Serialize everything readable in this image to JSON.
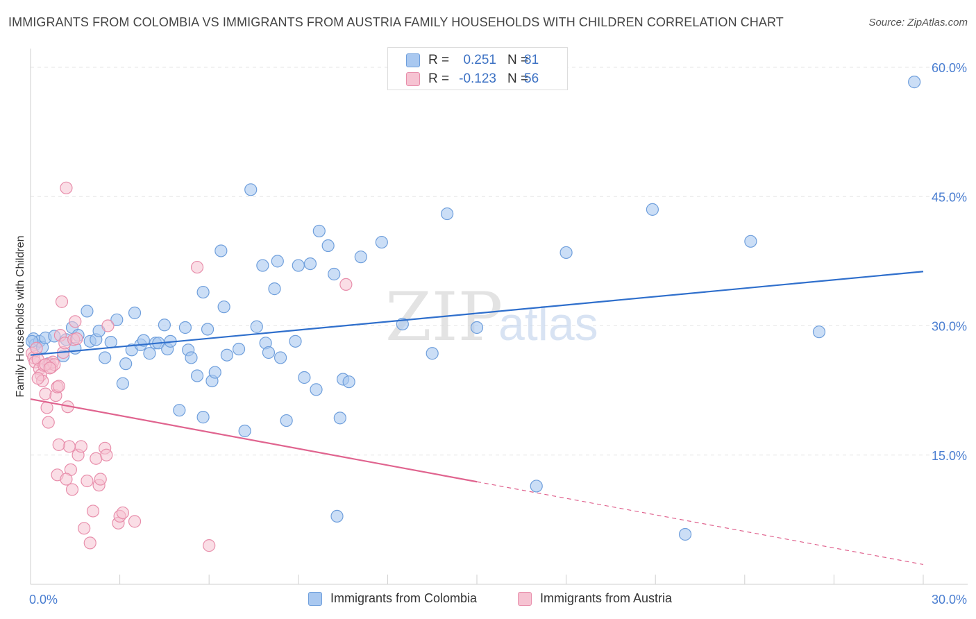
{
  "header": {
    "title": "IMMIGRANTS FROM COLOMBIA VS IMMIGRANTS FROM AUSTRIA FAMILY HOUSEHOLDS WITH CHILDREN CORRELATION CHART",
    "source": "Source: ZipAtlas.com"
  },
  "watermark": {
    "zip": "ZIP",
    "atlas": "atlas"
  },
  "colors": {
    "colombia_fill": "#a9c8f0",
    "colombia_stroke": "#6f9fdc",
    "colombia_line": "#2f6fcc",
    "austria_fill": "#f6c3d2",
    "austria_stroke": "#e88eab",
    "austria_line": "#e0648f",
    "grid": "#e6e6e6",
    "axis_text": "#4a7ed1"
  },
  "legend": {
    "rows": [
      {
        "r_label": "R =",
        "r_value": "0.251",
        "n_label": "N =",
        "n_value": "81"
      },
      {
        "r_label": "R =",
        "r_value": "-0.123",
        "n_label": "N =",
        "n_value": "56"
      }
    ]
  },
  "bottom_legend": {
    "colombia": "Immigrants from Colombia",
    "austria": "Immigrants from Austria"
  },
  "chart_data": {
    "type": "scatter",
    "title": "IMMIGRANTS FROM COLOMBIA VS IMMIGRANTS FROM AUSTRIA FAMILY HOUSEHOLDS WITH CHILDREN CORRELATION CHART",
    "xlabel": "",
    "ylabel": "Family Households with Children",
    "xlim": [
      0,
      30
    ],
    "ylim": [
      0,
      60
    ],
    "x_tick_labels": [
      "0.0%",
      "30.0%"
    ],
    "y_tick_labels": [
      "15.0%",
      "30.0%",
      "45.0%",
      "60.0%"
    ],
    "y_ticks": [
      15,
      30,
      45,
      60
    ],
    "grid": true,
    "series": [
      {
        "name": "Immigrants from Colombia",
        "points": [
          [
            0.1,
            28.5
          ],
          [
            0.15,
            27.8
          ],
          [
            0.3,
            28.2
          ],
          [
            0.4,
            27.5
          ],
          [
            0.5,
            28.6
          ],
          [
            0.6,
            25.6
          ],
          [
            0.8,
            28.8
          ],
          [
            1.1,
            26.5
          ],
          [
            1.2,
            28.4
          ],
          [
            1.4,
            29.8
          ],
          [
            1.5,
            27.4
          ],
          [
            1.6,
            28.9
          ],
          [
            1.9,
            31.7
          ],
          [
            2.0,
            28.2
          ],
          [
            2.2,
            28.4
          ],
          [
            2.3,
            29.4
          ],
          [
            2.5,
            26.3
          ],
          [
            2.7,
            28.1
          ],
          [
            2.9,
            30.7
          ],
          [
            3.1,
            23.3
          ],
          [
            3.2,
            25.6
          ],
          [
            3.4,
            27.2
          ],
          [
            3.5,
            31.5
          ],
          [
            3.7,
            27.8
          ],
          [
            3.8,
            28.3
          ],
          [
            4.0,
            26.8
          ],
          [
            4.2,
            28.0
          ],
          [
            4.3,
            28.0
          ],
          [
            4.5,
            30.1
          ],
          [
            4.6,
            27.3
          ],
          [
            4.7,
            28.2
          ],
          [
            5.0,
            20.2
          ],
          [
            5.2,
            29.8
          ],
          [
            5.3,
            27.2
          ],
          [
            5.4,
            26.3
          ],
          [
            5.6,
            24.2
          ],
          [
            5.8,
            19.4
          ],
          [
            5.8,
            33.9
          ],
          [
            5.95,
            29.6
          ],
          [
            6.1,
            23.6
          ],
          [
            6.2,
            24.6
          ],
          [
            6.4,
            38.7
          ],
          [
            6.5,
            32.2
          ],
          [
            6.6,
            26.6
          ],
          [
            7.0,
            27.3
          ],
          [
            7.2,
            17.8
          ],
          [
            7.4,
            45.8
          ],
          [
            7.6,
            29.9
          ],
          [
            7.8,
            37.0
          ],
          [
            7.9,
            28.0
          ],
          [
            8.0,
            26.9
          ],
          [
            8.2,
            34.3
          ],
          [
            8.3,
            37.5
          ],
          [
            8.4,
            26.3
          ],
          [
            8.6,
            19.0
          ],
          [
            8.9,
            28.2
          ],
          [
            9.0,
            37.0
          ],
          [
            9.2,
            24.0
          ],
          [
            9.4,
            37.2
          ],
          [
            9.6,
            22.6
          ],
          [
            9.7,
            41.0
          ],
          [
            10.0,
            39.3
          ],
          [
            10.2,
            36.0
          ],
          [
            10.3,
            7.9
          ],
          [
            10.4,
            19.3
          ],
          [
            10.5,
            23.8
          ],
          [
            10.7,
            23.5
          ],
          [
            11.1,
            38.0
          ],
          [
            11.8,
            39.7
          ],
          [
            12.5,
            30.2
          ],
          [
            13.5,
            26.8
          ],
          [
            14.0,
            43.0
          ],
          [
            15.0,
            29.8
          ],
          [
            17.0,
            11.4
          ],
          [
            18.0,
            38.5
          ],
          [
            20.9,
            43.5
          ],
          [
            22.0,
            5.8
          ],
          [
            24.2,
            39.8
          ],
          [
            26.5,
            29.3
          ],
          [
            29.7,
            58.3
          ],
          [
            0.05,
            28.2
          ]
        ]
      },
      {
        "name": "Immigrants from Austria",
        "points": [
          [
            0.05,
            26.8
          ],
          [
            0.1,
            26.3
          ],
          [
            0.15,
            25.8
          ],
          [
            0.2,
            27.4
          ],
          [
            0.25,
            26.1
          ],
          [
            0.3,
            25.0
          ],
          [
            0.35,
            24.3
          ],
          [
            0.4,
            23.6
          ],
          [
            0.45,
            25.4
          ],
          [
            0.5,
            22.1
          ],
          [
            0.55,
            20.5
          ],
          [
            0.6,
            18.8
          ],
          [
            0.65,
            25.6
          ],
          [
            0.7,
            25.2
          ],
          [
            0.75,
            25.8
          ],
          [
            0.8,
            25.5
          ],
          [
            0.85,
            21.9
          ],
          [
            0.9,
            22.9
          ],
          [
            0.95,
            23.0
          ],
          [
            1.0,
            28.9
          ],
          [
            1.05,
            32.8
          ],
          [
            1.1,
            26.9
          ],
          [
            1.15,
            28.0
          ],
          [
            1.2,
            46.0
          ],
          [
            1.25,
            20.6
          ],
          [
            1.3,
            16.0
          ],
          [
            1.35,
            13.3
          ],
          [
            1.4,
            11.0
          ],
          [
            1.45,
            28.4
          ],
          [
            1.5,
            30.5
          ],
          [
            1.55,
            28.5
          ],
          [
            1.6,
            15.0
          ],
          [
            1.7,
            16.0
          ],
          [
            1.8,
            6.5
          ],
          [
            1.9,
            12.0
          ],
          [
            2.0,
            4.8
          ],
          [
            2.1,
            8.5
          ],
          [
            2.2,
            14.6
          ],
          [
            2.3,
            11.5
          ],
          [
            2.35,
            12.2
          ],
          [
            2.5,
            15.8
          ],
          [
            2.55,
            15.0
          ],
          [
            2.6,
            30.0
          ],
          [
            2.95,
            7.1
          ],
          [
            3.0,
            7.9
          ],
          [
            3.1,
            8.3
          ],
          [
            3.5,
            7.3
          ],
          [
            5.6,
            36.8
          ],
          [
            6.0,
            4.5
          ],
          [
            10.6,
            34.8
          ],
          [
            0.9,
            12.7
          ],
          [
            1.2,
            12.2
          ],
          [
            0.95,
            16.2
          ],
          [
            0.5,
            25.5
          ],
          [
            0.65,
            25.1
          ],
          [
            0.25,
            23.9
          ]
        ]
      }
    ],
    "trend_lines": [
      {
        "series": "Immigrants from Colombia",
        "x": [
          0,
          30
        ],
        "y": [
          26.6,
          36.3
        ],
        "style": "solid"
      },
      {
        "series": "Immigrants from Austria",
        "x": [
          0,
          15
        ],
        "y": [
          21.5,
          11.9
        ],
        "style": "solid"
      },
      {
        "series": "Immigrants from Austria",
        "x": [
          15,
          30
        ],
        "y": [
          11.9,
          2.3
        ],
        "style": "dashed"
      }
    ]
  }
}
